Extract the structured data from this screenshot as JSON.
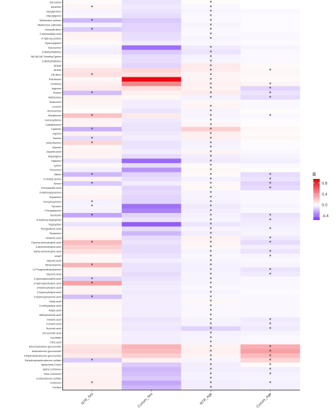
{
  "chart_data": {
    "type": "heatmap",
    "columns": [
      "NTR_Sex",
      "Curium_Sex",
      "NTR_Age",
      "Curium_Age"
    ],
    "legend": {
      "title": "B",
      "ticks": [
        0.8,
        0.4,
        0.0,
        -0.4
      ],
      "range": [
        -0.55,
        0.95
      ],
      "colors": {
        "low": "#7b3cf0",
        "mid": "#ffffff",
        "high": "#e8000b"
      }
    },
    "rows": [
      {
        "name": "Sarcosine",
        "values": [
          0.02,
          -0.08,
          0.01,
          0.0
        ],
        "sig": [
          0,
          0,
          1,
          0
        ]
      },
      {
        "name": "Anserine",
        "values": [
          0.04,
          -0.06,
          -0.02,
          0.0
        ],
        "sig": [
          1,
          0,
          1,
          0
        ]
      },
      {
        "name": "Glycylproline",
        "values": [
          -0.03,
          -0.08,
          -0.03,
          -0.02
        ],
        "sig": [
          0,
          0,
          1,
          0
        ]
      },
      {
        "name": "Glycylglycine",
        "values": [
          -0.02,
          -0.1,
          -0.02,
          -0.01
        ],
        "sig": [
          0,
          0,
          1,
          0
        ]
      },
      {
        "name": "Methionine sulfone",
        "values": [
          -0.2,
          -0.15,
          -0.02,
          -0.01
        ],
        "sig": [
          1,
          0,
          1,
          0
        ]
      },
      {
        "name": "Methionine sulfoxide",
        "values": [
          -0.04,
          -0.12,
          -0.03,
          -0.01
        ],
        "sig": [
          0,
          0,
          1,
          0
        ]
      },
      {
        "name": "Homocitrulline",
        "values": [
          -0.15,
          -0.12,
          -0.02,
          -0.01
        ],
        "sig": [
          1,
          0,
          1,
          0
        ]
      },
      {
        "name": "2-aminoadipic acid",
        "values": [
          0.05,
          -0.1,
          -0.02,
          -0.02
        ],
        "sig": [
          0,
          0,
          1,
          0
        ]
      },
      {
        "name": "4-hydroxy proline",
        "values": [
          0.04,
          -0.09,
          -0.03,
          -0.02
        ],
        "sig": [
          0,
          0,
          1,
          0
        ]
      },
      {
        "name": "Hydroxylysine",
        "values": [
          0.02,
          -0.05,
          -0.02,
          -0.01
        ],
        "sig": [
          0,
          0,
          0,
          0
        ]
      },
      {
        "name": "Kynurenine",
        "values": [
          -0.04,
          -0.4,
          -0.06,
          -0.03
        ],
        "sig": [
          0,
          0,
          1,
          0
        ]
      },
      {
        "name": "3-Methylhistidine",
        "values": [
          -0.05,
          -0.15,
          -0.08,
          -0.02
        ],
        "sig": [
          0,
          0,
          1,
          0
        ]
      },
      {
        "name": "N6-N6-N6-Trimethyl-lysine",
        "values": [
          0.03,
          -0.1,
          -0.04,
          -0.02
        ],
        "sig": [
          0,
          0,
          1,
          0
        ]
      },
      {
        "name": "3-Methylhistidine",
        "values": [
          0.01,
          -0.1,
          -0.03,
          -0.02
        ],
        "sig": [
          0,
          0,
          1,
          0
        ]
      },
      {
        "name": "SDMA",
        "values": [
          0.04,
          -0.12,
          0.08,
          0.02
        ],
        "sig": [
          0,
          0,
          1,
          0
        ]
      },
      {
        "name": "ADMA",
        "values": [
          0.1,
          0.15,
          0.07,
          0.03
        ],
        "sig": [
          0,
          0,
          1,
          1
        ]
      },
      {
        "name": "Citrulline",
        "values": [
          0.12,
          0.1,
          0.04,
          0.03
        ],
        "sig": [
          1,
          0,
          1,
          0
        ]
      },
      {
        "name": "Putrescine",
        "values": [
          0.03,
          0.92,
          0.04,
          0.02
        ],
        "sig": [
          0,
          0,
          1,
          0
        ]
      },
      {
        "name": "Ornithine",
        "values": [
          0.06,
          0.45,
          0.06,
          0.04
        ],
        "sig": [
          0,
          0,
          1,
          1
        ]
      },
      {
        "name": "Arginine",
        "values": [
          0.08,
          0.12,
          0.05,
          -0.12
        ],
        "sig": [
          0,
          0,
          1,
          1
        ]
      },
      {
        "name": "Proline",
        "values": [
          -0.18,
          0.06,
          0.07,
          -0.08
        ],
        "sig": [
          1,
          0,
          1,
          1
        ]
      },
      {
        "name": "Methionine",
        "values": [
          0.05,
          0.03,
          -0.04,
          -0.1
        ],
        "sig": [
          0,
          0,
          1,
          1
        ]
      },
      {
        "name": "Isoleucine",
        "values": [
          0.04,
          -0.05,
          0.03,
          -0.02
        ],
        "sig": [
          0,
          0,
          0,
          0
        ]
      },
      {
        "name": "Leucine",
        "values": [
          0.03,
          -0.05,
          0.04,
          -0.02
        ],
        "sig": [
          0,
          0,
          1,
          0
        ]
      },
      {
        "name": "Homoserine",
        "values": [
          0.01,
          -0.08,
          -0.03,
          0.01
        ],
        "sig": [
          0,
          0,
          1,
          0
        ]
      },
      {
        "name": "Glutathione",
        "values": [
          0.22,
          0.08,
          -0.03,
          -0.02
        ],
        "sig": [
          1,
          0,
          1,
          1
        ]
      },
      {
        "name": "Homocysteine",
        "values": [
          0.05,
          -0.06,
          -0.02,
          -0.01
        ],
        "sig": [
          0,
          0,
          1,
          0
        ]
      },
      {
        "name": "Cystathionine",
        "values": [
          0.04,
          -0.08,
          0.04,
          0.01
        ],
        "sig": [
          0,
          0,
          1,
          0
        ]
      },
      {
        "name": "Cysteine",
        "values": [
          -0.22,
          -0.08,
          0.18,
          0.03
        ],
        "sig": [
          1,
          0,
          1,
          0
        ]
      },
      {
        "name": "Glycine",
        "values": [
          0.05,
          -0.06,
          0.06,
          0.02
        ],
        "sig": [
          0,
          0,
          1,
          0
        ]
      },
      {
        "name": "Taurine",
        "values": [
          -0.1,
          -0.05,
          0.06,
          0.03
        ],
        "sig": [
          1,
          0,
          1,
          0
        ]
      },
      {
        "name": "Beta-Alanine",
        "values": [
          0.15,
          -0.08,
          -0.04,
          -0.01
        ],
        "sig": [
          1,
          0,
          1,
          0
        ]
      },
      {
        "name": "Alanine",
        "values": [
          0.03,
          -0.08,
          -0.03,
          -0.01
        ],
        "sig": [
          0,
          0,
          1,
          0
        ]
      },
      {
        "name": "Aspartic acid",
        "values": [
          0.05,
          -0.05,
          0.04,
          -0.02
        ],
        "sig": [
          0,
          0,
          1,
          0
        ]
      },
      {
        "name": "Asparagine",
        "values": [
          0.04,
          -0.1,
          -0.05,
          -0.03
        ],
        "sig": [
          0,
          0,
          1,
          0
        ]
      },
      {
        "name": "Histidine",
        "values": [
          -0.08,
          -0.42,
          -0.06,
          -0.05
        ],
        "sig": [
          0,
          0,
          1,
          0
        ]
      },
      {
        "name": "Lysine",
        "values": [
          0.03,
          -0.1,
          0.02,
          -0.02
        ],
        "sig": [
          0,
          0,
          1,
          0
        ]
      },
      {
        "name": "Threonine",
        "values": [
          -0.05,
          -0.3,
          0.03,
          0.01
        ],
        "sig": [
          0,
          0,
          1,
          0
        ]
      },
      {
        "name": "Valine",
        "values": [
          -0.2,
          -0.12,
          0.02,
          -0.1
        ],
        "sig": [
          1,
          0,
          1,
          1
        ]
      },
      {
        "name": "O-Acetyl-serine",
        "values": [
          0.05,
          -0.09,
          -0.04,
          -0.08
        ],
        "sig": [
          0,
          0,
          1,
          1
        ]
      },
      {
        "name": "Serine",
        "values": [
          -0.15,
          -0.05,
          0.03,
          -0.12
        ],
        "sig": [
          1,
          0,
          1,
          1
        ]
      },
      {
        "name": "Homovanillic acid",
        "values": [
          0.03,
          -0.12,
          0.03,
          -0.1
        ],
        "sig": [
          0,
          0,
          1,
          1
        ]
      },
      {
        "name": "3-Methoxytyramine",
        "values": [
          0.03,
          -0.1,
          -0.03,
          -0.02
        ],
        "sig": [
          0,
          0,
          1,
          0
        ]
      },
      {
        "name": "Dopamine",
        "values": [
          0.05,
          -0.12,
          -0.03,
          -0.02
        ],
        "sig": [
          0,
          0,
          1,
          0
        ]
      },
      {
        "name": "Norepinephrine",
        "values": [
          -0.04,
          -0.12,
          -0.04,
          -0.02
        ],
        "sig": [
          1,
          0,
          1,
          0
        ]
      },
      {
        "name": "Tyrosine",
        "values": [
          -0.03,
          -0.4,
          -0.06,
          -0.03
        ],
        "sig": [
          1,
          0,
          1,
          0
        ]
      },
      {
        "name": "Phenylalanine",
        "values": [
          -0.04,
          -0.35,
          -0.05,
          -0.02
        ],
        "sig": [
          0,
          0,
          1,
          0
        ]
      },
      {
        "name": "Serotonin",
        "values": [
          -0.25,
          -0.12,
          -0.04,
          -0.08
        ],
        "sig": [
          1,
          0,
          1,
          1
        ]
      },
      {
        "name": "5-Hydroxy-tryptophan",
        "values": [
          0.03,
          -0.08,
          -0.03,
          -0.06
        ],
        "sig": [
          0,
          0,
          1,
          1
        ]
      },
      {
        "name": "Tryptophan",
        "values": [
          -0.08,
          -0.45,
          -0.07,
          -0.05
        ],
        "sig": [
          0,
          0,
          1,
          0
        ]
      },
      {
        "name": "Pyroglutamic acid",
        "values": [
          0.04,
          -0.1,
          -0.03,
          -0.04
        ],
        "sig": [
          0,
          0,
          1,
          1
        ]
      },
      {
        "name": "Glutamine",
        "values": [
          0.03,
          -0.2,
          -0.05,
          -0.03
        ],
        "sig": [
          0,
          0,
          1,
          0
        ]
      },
      {
        "name": "Glutamic acid",
        "values": [
          0.05,
          -0.1,
          0.05,
          -0.06
        ],
        "sig": [
          0,
          0,
          1,
          1
        ]
      },
      {
        "name": "Gamma-aminobutyric acid",
        "values": [
          0.25,
          -0.08,
          0.04,
          -0.1
        ],
        "sig": [
          1,
          0,
          1,
          1
        ]
      },
      {
        "name": "3-aminoisobutyric acid",
        "values": [
          0.18,
          -0.1,
          0.03,
          -0.05
        ],
        "sig": [
          0,
          0,
          1,
          0
        ]
      },
      {
        "name": "Alpha-aminobutyric acid",
        "values": [
          0.12,
          -0.1,
          -0.03,
          -0.08
        ],
        "sig": [
          0,
          0,
          1,
          1
        ]
      },
      {
        "name": "Uracil",
        "values": [
          0.03,
          -0.08,
          -0.02,
          -0.03
        ],
        "sig": [
          0,
          0,
          1,
          1
        ]
      },
      {
        "name": "Glycolic acid",
        "values": [
          0.03,
          -0.05,
          -0.03,
          -0.02
        ],
        "sig": [
          0,
          0,
          1,
          0
        ]
      },
      {
        "name": "Ethanolamine",
        "values": [
          0.28,
          -0.08,
          -0.04,
          -0.03
        ],
        "sig": [
          1,
          0,
          1,
          0
        ]
      },
      {
        "name": "O-Phosphoethanolamine",
        "values": [
          0.05,
          -0.08,
          -0.04,
          -0.08
        ],
        "sig": [
          0,
          0,
          1,
          1
        ]
      },
      {
        "name": "Glyceric acid",
        "values": [
          0.04,
          -0.1,
          -0.03,
          -0.06
        ],
        "sig": [
          0,
          0,
          1,
          1
        ]
      },
      {
        "name": "3-hydroxyisovaleric acid",
        "values": [
          -0.12,
          -0.08,
          -0.03,
          -0.02
        ],
        "sig": [
          1,
          0,
          1,
          0
        ]
      },
      {
        "name": "3-hydroxyisobutyric acid",
        "values": [
          0.35,
          -0.06,
          -0.03,
          -0.02
        ],
        "sig": [
          1,
          0,
          1,
          0
        ]
      },
      {
        "name": "3-Hydroxybutyric acid",
        "values": [
          0.04,
          -0.05,
          -0.02,
          -0.02
        ],
        "sig": [
          0,
          0,
          1,
          0
        ]
      },
      {
        "name": "2-hydroxybutyric acid",
        "values": [
          0.05,
          -0.06,
          -0.03,
          -0.01
        ],
        "sig": [
          0,
          0,
          1,
          0
        ]
      },
      {
        "name": "3-Hydroxypropionic acid",
        "values": [
          -0.18,
          -0.05,
          -0.02,
          -0.02
        ],
        "sig": [
          1,
          0,
          1,
          0
        ]
      },
      {
        "name": "Malic acid",
        "values": [
          0.04,
          -0.05,
          0.03,
          -0.02
        ],
        "sig": [
          0,
          0,
          1,
          0
        ]
      },
      {
        "name": "3-methyladipic acid",
        "values": [
          0.03,
          -0.05,
          -0.02,
          -0.02
        ],
        "sig": [
          0,
          0,
          1,
          0
        ]
      },
      {
        "name": "Adipic acid",
        "values": [
          0.03,
          -0.05,
          -0.02,
          -0.02
        ],
        "sig": [
          0,
          0,
          1,
          0
        ]
      },
      {
        "name": "Methylmalonic acid",
        "values": [
          0.02,
          -0.05,
          -0.02,
          -0.02
        ],
        "sig": [
          0,
          0,
          1,
          0
        ]
      },
      {
        "name": "Glutaric acid",
        "values": [
          0.04,
          -0.08,
          -0.03,
          -0.06
        ],
        "sig": [
          0,
          0,
          1,
          1
        ]
      },
      {
        "name": "Fumaric acid",
        "values": [
          0.03,
          -0.06,
          -0.04,
          -0.05
        ],
        "sig": [
          0,
          0,
          1,
          1
        ]
      },
      {
        "name": "Succinic acid",
        "values": [
          0.03,
          -0.07,
          -0.12,
          -0.06
        ],
        "sig": [
          0,
          0,
          1,
          1
        ]
      },
      {
        "name": "Cis-aconitic acid",
        "values": [
          0.02,
          -0.05,
          -0.04,
          -0.03
        ],
        "sig": [
          0,
          0,
          1,
          0
        ]
      },
      {
        "name": "Isocitrate",
        "values": [
          0.03,
          -0.05,
          -0.03,
          -0.02
        ],
        "sig": [
          0,
          0,
          1,
          0
        ]
      },
      {
        "name": "Citric acid",
        "values": [
          0.03,
          -0.05,
          -0.03,
          -0.02
        ],
        "sig": [
          0,
          0,
          1,
          0
        ]
      },
      {
        "name": "Etiocholanolone glucuronide",
        "values": [
          0.1,
          0.28,
          0.05,
          0.3
        ],
        "sig": [
          0,
          0,
          1,
          1
        ]
      },
      {
        "name": "Androsterone glucuronide",
        "values": [
          0.12,
          0.25,
          0.06,
          0.35
        ],
        "sig": [
          0,
          0,
          1,
          1
        ]
      },
      {
        "name": "Dihydrotestosterone glucuronide",
        "values": [
          0.08,
          0.18,
          0.04,
          0.25
        ],
        "sig": [
          0,
          0,
          1,
          1
        ]
      },
      {
        "name": "Dehydroepiandrosterone sulfate",
        "values": [
          -0.15,
          0.05,
          -0.03,
          0.15
        ],
        "sig": [
          1,
          0,
          1,
          1
        ]
      },
      {
        "name": "alpha-beta-Cortol",
        "values": [
          0.03,
          -0.15,
          -0.05,
          0.02
        ],
        "sig": [
          0,
          0,
          1,
          1
        ]
      },
      {
        "name": "alpha-Cortolone",
        "values": [
          0.05,
          -0.2,
          -0.05,
          -0.05
        ],
        "sig": [
          0,
          0,
          1,
          1
        ]
      },
      {
        "name": "beta-Cortolone",
        "values": [
          0.04,
          -0.18,
          -0.04,
          -0.04
        ],
        "sig": [
          0,
          0,
          1,
          1
        ]
      },
      {
        "name": "Corticosterone sulfate",
        "values": [
          0.05,
          -0.15,
          -0.04,
          -0.03
        ],
        "sig": [
          0,
          0,
          1,
          0
        ]
      },
      {
        "name": "Cortisone",
        "values": [
          0.06,
          -0.25,
          -0.05,
          -0.04
        ],
        "sig": [
          1,
          0,
          1,
          1
        ]
      },
      {
        "name": "Cortisol",
        "values": [
          0.05,
          -0.2,
          -0.05,
          -0.04
        ],
        "sig": [
          0,
          0,
          1,
          0
        ]
      }
    ]
  }
}
